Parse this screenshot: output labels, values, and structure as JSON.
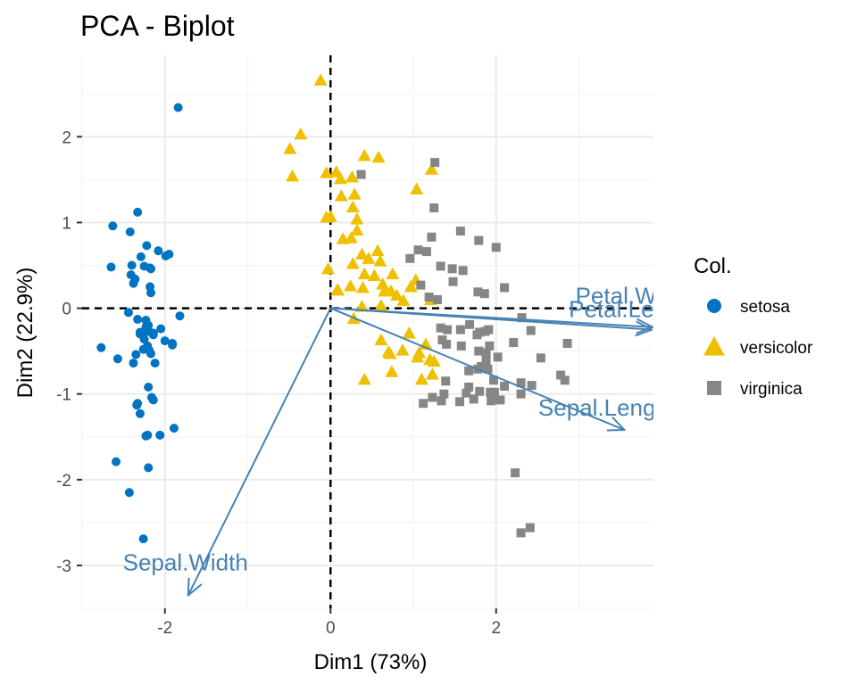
{
  "chart_data": {
    "type": "scatter",
    "title": "PCA - Biplot",
    "xlabel": "Dim1 (73%)",
    "ylabel": "Dim2 (22.9%)",
    "xlim": [
      -3.0,
      3.9
    ],
    "ylim": [
      -3.5,
      2.95
    ],
    "xticks": [
      -2,
      0,
      2
    ],
    "yticks": [
      -3,
      -2,
      -1,
      0,
      1,
      2
    ],
    "grid": true,
    "reference_lines": {
      "x": 0,
      "y": 0,
      "style": "dashed"
    },
    "legend": {
      "title": "Col.",
      "position": "right"
    },
    "series": [
      {
        "name": "setosa",
        "marker": "circle",
        "color": "#0073C2",
        "points": [
          [
            -2.26,
            -0.48
          ],
          [
            -2.08,
            0.67
          ],
          [
            -2.36,
            0.34
          ],
          [
            -2.29,
            0.6
          ],
          [
            -2.38,
            -0.64
          ],
          [
            -2.06,
            -1.48
          ],
          [
            -2.44,
            -0.05
          ],
          [
            -2.23,
            -0.22
          ],
          [
            -2.33,
            1.12
          ],
          [
            -2.18,
            0.47
          ],
          [
            -2.16,
            -1.04
          ],
          [
            -2.33,
            -0.13
          ],
          [
            -2.22,
            0.73
          ],
          [
            -2.63,
            0.96
          ],
          [
            -2.2,
            -1.86
          ],
          [
            -2.26,
            -2.69
          ],
          [
            -2.21,
            -1.48
          ],
          [
            -2.19,
            -0.49
          ],
          [
            -1.89,
            -1.4
          ],
          [
            -2.34,
            -1.13
          ],
          [
            -1.91,
            -0.41
          ],
          [
            -2.2,
            -0.92
          ],
          [
            -2.77,
            -0.46
          ],
          [
            -1.82,
            -0.09
          ],
          [
            -2.23,
            -0.14
          ],
          [
            -1.95,
            0.63
          ],
          [
            -2.05,
            -0.24
          ],
          [
            -2.17,
            -0.53
          ],
          [
            -2.14,
            -0.31
          ],
          [
            -2.17,
            0.18
          ],
          [
            -1.99,
            0.61
          ],
          [
            -1.91,
            -0.43
          ],
          [
            -2.59,
            -1.79
          ],
          [
            -2.43,
            -2.15
          ],
          [
            -2.17,
            0.46
          ],
          [
            -2.38,
            0.29
          ],
          [
            -2.33,
            -1.11
          ],
          [
            -2.2,
            -0.26
          ],
          [
            -2.65,
            0.48
          ],
          [
            -2.21,
            -0.44
          ],
          [
            -2.22,
            -0.22
          ],
          [
            -1.84,
            2.34
          ],
          [
            -2.42,
            0.89
          ],
          [
            -2.14,
            -0.29
          ],
          [
            -2.14,
            -1.07
          ],
          [
            -2.25,
            0.49
          ],
          [
            -2.23,
            -1.49
          ],
          [
            -2.41,
            0.39
          ],
          [
            -2.21,
            -0.27
          ],
          [
            -2.4,
            0.5
          ],
          [
            -2.2,
            -0.2
          ],
          [
            -2.3,
            -0.28
          ],
          [
            -2.35,
            -0.54
          ],
          [
            -2.12,
            -0.64
          ],
          [
            -2.57,
            -0.59
          ],
          [
            -2.18,
            0.25
          ],
          [
            -2.3,
            -0.3
          ],
          [
            -2.25,
            -0.36
          ],
          [
            -2.0,
            -0.38
          ],
          [
            -2.3,
            -1.23
          ]
        ]
      },
      {
        "name": "versicolor",
        "marker": "triangle",
        "color": "#EFC000",
        "points": [
          [
            -0.12,
            2.66
          ],
          [
            -0.49,
            1.86
          ],
          [
            -0.36,
            2.03
          ],
          [
            -0.46,
            1.54
          ],
          [
            -0.05,
            1.58
          ],
          [
            0.07,
            1.59
          ],
          [
            0.41,
            1.78
          ],
          [
            0.58,
            1.76
          ],
          [
            0.12,
            1.51
          ],
          [
            0.26,
            1.53
          ],
          [
            0.29,
            1.33
          ],
          [
            0.13,
            1.31
          ],
          [
            0.27,
            1.18
          ],
          [
            0.32,
            1.04
          ],
          [
            1.04,
            1.39
          ],
          [
            1.22,
            1.62
          ],
          [
            -0.05,
            1.06
          ],
          [
            0.0,
            1.07
          ],
          [
            0.32,
            0.91
          ],
          [
            0.15,
            0.81
          ],
          [
            0.25,
            0.82
          ],
          [
            0.38,
            0.63
          ],
          [
            0.57,
            0.67
          ],
          [
            0.46,
            0.58
          ],
          [
            0.6,
            0.55
          ],
          [
            -0.03,
            0.46
          ],
          [
            0.27,
            0.52
          ],
          [
            0.41,
            0.4
          ],
          [
            0.53,
            0.38
          ],
          [
            0.75,
            0.4
          ],
          [
            0.09,
            0.21
          ],
          [
            0.08,
            0.21
          ],
          [
            0.24,
            0.26
          ],
          [
            0.39,
            0.24
          ],
          [
            0.65,
            0.2
          ],
          [
            0.63,
            0.28
          ],
          [
            0.73,
            0.2
          ],
          [
            0.8,
            0.15
          ],
          [
            0.88,
            0.09
          ],
          [
            0.97,
            0.25
          ],
          [
            1.03,
            0.33
          ],
          [
            1.21,
            0.1
          ],
          [
            0.38,
            0.02
          ],
          [
            0.61,
            0.03
          ],
          [
            0.28,
            -0.12
          ],
          [
            0.61,
            -0.37
          ],
          [
            0.87,
            -0.49
          ],
          [
            0.95,
            -0.29
          ],
          [
            1.07,
            -0.52
          ],
          [
            0.7,
            -0.51
          ],
          [
            0.72,
            -0.53
          ],
          [
            1.15,
            -0.42
          ],
          [
            1.05,
            -0.57
          ],
          [
            1.25,
            -0.62
          ],
          [
            1.23,
            -0.77
          ],
          [
            0.41,
            -0.83
          ],
          [
            0.74,
            -0.74
          ],
          [
            1.1,
            -0.83
          ],
          [
            1.2,
            -0.6
          ]
        ]
      },
      {
        "name": "virginica",
        "marker": "square",
        "color": "#868686",
        "points": [
          [
            1.26,
            1.7
          ],
          [
            0.37,
            1.56
          ],
          [
            1.25,
            1.17
          ],
          [
            1.22,
            0.83
          ],
          [
            1.16,
            0.66
          ],
          [
            1.57,
            0.9
          ],
          [
            1.79,
            0.79
          ],
          [
            2.0,
            0.71
          ],
          [
            0.96,
            0.58
          ],
          [
            1.06,
            0.68
          ],
          [
            1.33,
            0.49
          ],
          [
            1.47,
            0.46
          ],
          [
            1.6,
            0.44
          ],
          [
            1.78,
            0.19
          ],
          [
            1.86,
            0.17
          ],
          [
            1.09,
            0.27
          ],
          [
            1.19,
            0.13
          ],
          [
            1.29,
            0.1
          ],
          [
            1.48,
            0.31
          ],
          [
            2.1,
            0.24
          ],
          [
            2.31,
            -0.11
          ],
          [
            2.42,
            -0.26
          ],
          [
            1.33,
            -0.23
          ],
          [
            1.41,
            -0.25
          ],
          [
            1.57,
            -0.25
          ],
          [
            1.68,
            -0.19
          ],
          [
            1.8,
            -0.28
          ],
          [
            1.87,
            -0.27
          ],
          [
            1.77,
            -0.31
          ],
          [
            1.91,
            -0.25
          ],
          [
            1.4,
            -0.42
          ],
          [
            1.58,
            -0.44
          ],
          [
            1.79,
            -0.5
          ],
          [
            1.92,
            -0.44
          ],
          [
            2.21,
            -0.4
          ],
          [
            2.54,
            -0.58
          ],
          [
            2.86,
            -0.41
          ],
          [
            1.88,
            -0.61
          ],
          [
            1.78,
            -0.71
          ],
          [
            1.67,
            -0.73
          ],
          [
            1.82,
            -0.68
          ],
          [
            1.88,
            -0.52
          ],
          [
            2.02,
            -0.57
          ],
          [
            1.9,
            -0.71
          ],
          [
            1.97,
            -0.84
          ],
          [
            1.93,
            -0.98
          ],
          [
            1.8,
            -0.97
          ],
          [
            1.67,
            -0.92
          ],
          [
            1.39,
            -0.85
          ],
          [
            1.37,
            -1.0
          ],
          [
            1.23,
            -1.04
          ],
          [
            1.56,
            -1.09
          ],
          [
            1.73,
            -1.06
          ],
          [
            1.64,
            -0.99
          ],
          [
            1.96,
            -1.05
          ],
          [
            1.94,
            -1.08
          ],
          [
            1.98,
            -0.98
          ],
          [
            2.05,
            -1.07
          ],
          [
            2.1,
            -0.91
          ],
          [
            2.3,
            -1.0
          ],
          [
            2.43,
            -0.9
          ],
          [
            2.3,
            -0.87
          ],
          [
            2.78,
            -0.78
          ],
          [
            2.83,
            -0.84
          ],
          [
            1.35,
            -0.37
          ],
          [
            1.12,
            -1.11
          ],
          [
            1.34,
            -1.08
          ],
          [
            2.23,
            -1.92
          ],
          [
            2.3,
            -2.62
          ],
          [
            2.41,
            -2.56
          ]
        ]
      }
    ],
    "variable_arrows": [
      {
        "label": "Sepal.Length",
        "x": 3.55,
        "y": -1.42
      },
      {
        "label": "Sepal.Width",
        "x": -1.72,
        "y": -3.35
      },
      {
        "label": "Petal.Length",
        "x": 3.88,
        "y": -0.25
      },
      {
        "label": "Petal.Width",
        "x": 3.89,
        "y": -0.22
      }
    ],
    "arrow_color": "#4682B4"
  }
}
